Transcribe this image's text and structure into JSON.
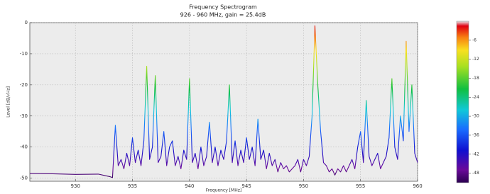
{
  "chart_data": {
    "type": "line",
    "title": "Frequency Spectrogram",
    "subtitle": "926 - 960 MHz, gain = 25.4dB",
    "x_label": "Frequency [MHz]",
    "y_label": "Level [dB/√Hz]",
    "x": [
      926,
      928,
      930,
      932,
      933,
      933.25,
      933.5,
      933.75,
      934,
      934.25,
      934.5,
      934.75,
      935,
      935.25,
      935.5,
      935.75,
      936,
      936.25,
      936.5,
      936.75,
      937,
      937.25,
      937.5,
      937.75,
      938,
      938.25,
      938.5,
      938.75,
      939,
      939.25,
      939.5,
      939.75,
      940,
      940.25,
      940.5,
      940.75,
      941,
      941.25,
      941.5,
      941.75,
      942,
      942.25,
      942.5,
      942.75,
      943,
      943.25,
      943.5,
      943.75,
      944,
      944.25,
      944.5,
      944.75,
      945,
      945.25,
      945.5,
      945.75,
      946,
      946.25,
      946.5,
      946.75,
      947,
      947.25,
      947.5,
      947.75,
      948,
      948.25,
      948.5,
      948.75,
      949,
      949.25,
      949.5,
      949.75,
      950,
      950.25,
      950.5,
      950.75,
      951,
      951.25,
      951.5,
      951.75,
      952,
      952.25,
      952.5,
      952.75,
      953,
      953.25,
      953.5,
      953.75,
      954,
      954.25,
      954.5,
      954.75,
      955,
      955.25,
      955.5,
      955.75,
      956,
      956.25,
      956.5,
      956.75,
      957,
      957.25,
      957.5,
      957.75,
      958,
      958.25,
      958.5,
      958.75,
      959,
      959.25,
      959.5,
      959.75,
      960
    ],
    "values": [
      -48.5,
      -48.6,
      -48.8,
      -48.7,
      -49.5,
      -49.8,
      -33,
      -46,
      -44,
      -47,
      -42,
      -46,
      -37,
      -45,
      -41,
      -46,
      -38,
      -14,
      -44,
      -40,
      -17,
      -45,
      -43,
      -35,
      -46,
      -40,
      -38,
      -46,
      -43,
      -47,
      -41,
      -44,
      -18,
      -45,
      -42,
      -47,
      -40,
      -46,
      -43,
      -32,
      -45,
      -40,
      -46,
      -41,
      -44,
      -38,
      -20,
      -45,
      -38,
      -46,
      -41,
      -45,
      -37,
      -44,
      -40,
      -46,
      -31,
      -44,
      -41,
      -47,
      -42,
      -46,
      -44,
      -48,
      -45,
      -47,
      -46,
      -48,
      -47,
      -46,
      -44,
      -48,
      -44,
      -46,
      -43,
      -30,
      -1,
      -20,
      -35,
      -45,
      -46,
      -48,
      -47,
      -49,
      -47,
      -48,
      -46,
      -48,
      -46,
      -44,
      -47,
      -40,
      -35,
      -45,
      -25,
      -43,
      -46,
      -44,
      -42,
      -47,
      -45,
      -43,
      -37,
      -18,
      -40,
      -44,
      -30,
      -38,
      -6,
      -35,
      -20,
      -42,
      -45
    ],
    "xlim": [
      926,
      960
    ],
    "xticks": [
      930,
      935,
      940,
      945,
      950,
      955,
      960
    ],
    "ylim": [
      -51,
      0
    ],
    "yticks": [
      0,
      -10,
      -20,
      -30,
      -40,
      -50
    ],
    "grid": true,
    "colorbar": {
      "lim": [
        -51,
        0
      ],
      "ticks": [
        -6,
        -12,
        -18,
        -24,
        -30,
        -36,
        -42,
        -48
      ]
    }
  }
}
